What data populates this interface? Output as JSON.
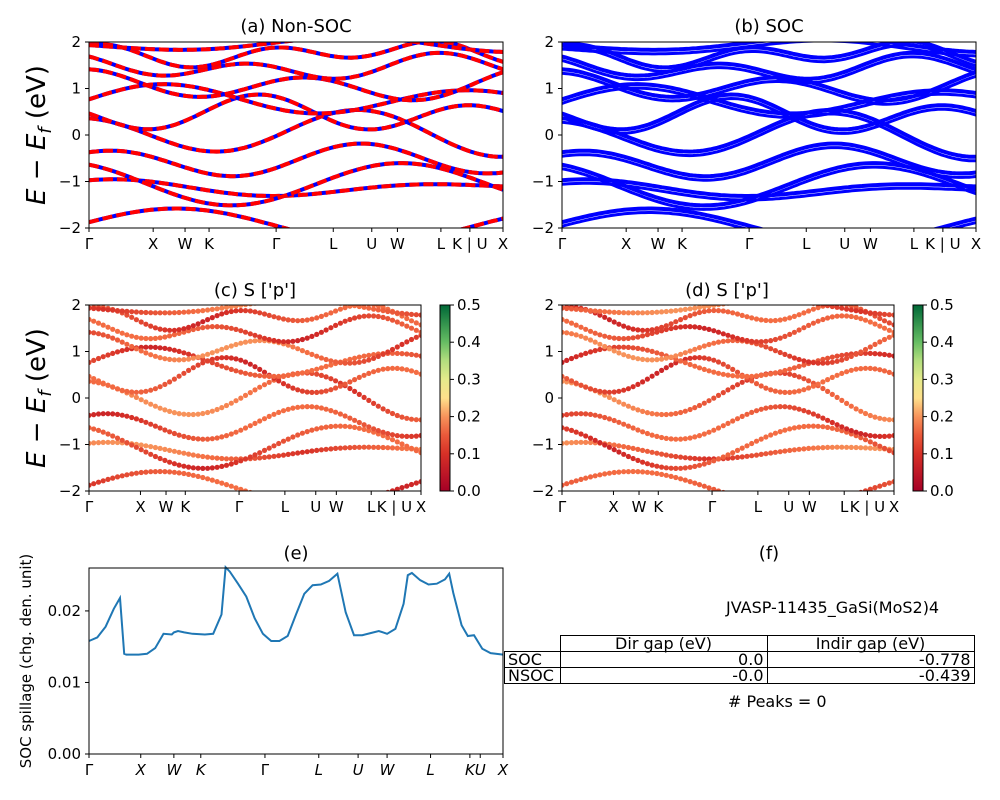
{
  "chart_data": [
    {
      "id": "a",
      "type": "line",
      "title": "(a) Non-SOC",
      "ylabel": "E - Ef (eV)",
      "ylim": [
        -2,
        2
      ],
      "yticks": [
        "2",
        "1",
        "0",
        "−1",
        "−2"
      ],
      "xticks": [
        "Γ",
        "X",
        "W",
        "K",
        "Γ",
        "L",
        "U",
        "W",
        "L",
        "K | U",
        "X"
      ],
      "series_colors": [
        "#ff0000",
        "#0000ff"
      ],
      "description": "Band structure bands; red and blue dashed overlap"
    },
    {
      "id": "b",
      "type": "line",
      "title": "(b) SOC",
      "ylim": [
        -2,
        2
      ],
      "yticks": [
        "2",
        "1",
        "0",
        "−1",
        "−2"
      ],
      "xticks": [
        "Γ",
        "X",
        "W",
        "K",
        "Γ",
        "L",
        "U",
        "W",
        "L",
        "K | U",
        "X"
      ],
      "series_colors": [
        "#0000ff"
      ]
    },
    {
      "id": "c",
      "type": "scatter",
      "title": "(c)  S ['p']",
      "ylabel": "E - Ef (eV)",
      "ylim": [
        -2,
        2
      ],
      "yticks": [
        "2",
        "1",
        "0",
        "−1",
        "−2"
      ],
      "xticks": [
        "Γ",
        "X",
        "W",
        "K",
        "Γ",
        "L",
        "U",
        "W",
        "L",
        "K | U",
        "X"
      ],
      "colorbar": {
        "min": 0.0,
        "max": 0.5,
        "ticks": [
          "0.5",
          "0.4",
          "0.3",
          "0.2",
          "0.1",
          "0.0"
        ],
        "colormap": "RdYlGn"
      }
    },
    {
      "id": "d",
      "type": "scatter",
      "title": "(d) S ['p']",
      "ylim": [
        -2,
        2
      ],
      "yticks": [
        "2",
        "1",
        "0",
        "−1",
        "−2"
      ],
      "xticks": [
        "Γ",
        "X",
        "W",
        "K",
        "Γ",
        "L",
        "U",
        "W",
        "L",
        "K | U",
        "X"
      ],
      "colorbar": {
        "min": 0.0,
        "max": 0.5,
        "ticks": [
          "0.5",
          "0.4",
          "0.3",
          "0.2",
          "0.1",
          "0.0"
        ],
        "colormap": "RdYlGn"
      }
    },
    {
      "id": "e",
      "type": "line",
      "title": "(e)",
      "ylabel": "SOC spillage (chg. den. unit)",
      "ylim": [
        0.0,
        0.026
      ],
      "yticks": [
        {
          "value": 0.02,
          "label": "0.02"
        },
        {
          "value": 0.01,
          "label": "0.01"
        },
        {
          "value": 0.0,
          "label": "0.00"
        }
      ],
      "xticks": [
        "Γ",
        "X",
        "W",
        "K",
        "Γ",
        "L",
        "U",
        "W",
        "L",
        "K",
        "U",
        "X"
      ],
      "x": [
        0.0,
        0.02,
        0.04,
        0.06,
        0.075,
        0.085,
        0.09,
        0.1,
        0.12,
        0.14,
        0.16,
        0.18,
        0.2,
        0.205,
        0.215,
        0.23,
        0.25,
        0.28,
        0.3,
        0.32,
        0.33,
        0.34,
        0.36,
        0.38,
        0.4,
        0.42,
        0.44,
        0.46,
        0.48,
        0.5,
        0.52,
        0.54,
        0.56,
        0.58,
        0.6,
        0.62,
        0.64,
        0.66,
        0.68,
        0.7,
        0.72,
        0.74,
        0.76,
        0.77,
        0.78,
        0.8,
        0.82,
        0.84,
        0.86,
        0.87,
        0.88,
        0.9,
        0.915,
        0.93,
        0.95,
        0.97,
        1.0
      ],
      "values": [
        0.0158,
        0.0163,
        0.0178,
        0.0203,
        0.0218,
        0.014,
        0.0139,
        0.0139,
        0.0139,
        0.014,
        0.0148,
        0.0168,
        0.0167,
        0.017,
        0.0172,
        0.017,
        0.0168,
        0.0167,
        0.0168,
        0.0195,
        0.0261,
        0.0255,
        0.0238,
        0.022,
        0.019,
        0.0168,
        0.0158,
        0.0158,
        0.0165,
        0.0195,
        0.0224,
        0.0236,
        0.0237,
        0.0242,
        0.0252,
        0.0198,
        0.0166,
        0.0166,
        0.0169,
        0.0172,
        0.0168,
        0.0175,
        0.021,
        0.025,
        0.0253,
        0.0243,
        0.0237,
        0.0238,
        0.0244,
        0.0252,
        0.0225,
        0.018,
        0.0165,
        0.0166,
        0.0147,
        0.0141,
        0.0139
      ],
      "series_colors": [
        "#1f77b4"
      ]
    }
  ],
  "panel_f": {
    "title": "(f)",
    "material": "JVASP-11435_GaSi(MoS2)4",
    "table": {
      "headers": [
        "Dir gap (eV)",
        "Indir gap (eV)"
      ],
      "rows": [
        {
          "label": "SOC",
          "dir": "0.0",
          "indir": "-0.778"
        },
        {
          "label": "NSOC",
          "dir": "-0.0",
          "indir": "-0.439"
        }
      ]
    },
    "peaks": "# Peaks = 0"
  }
}
